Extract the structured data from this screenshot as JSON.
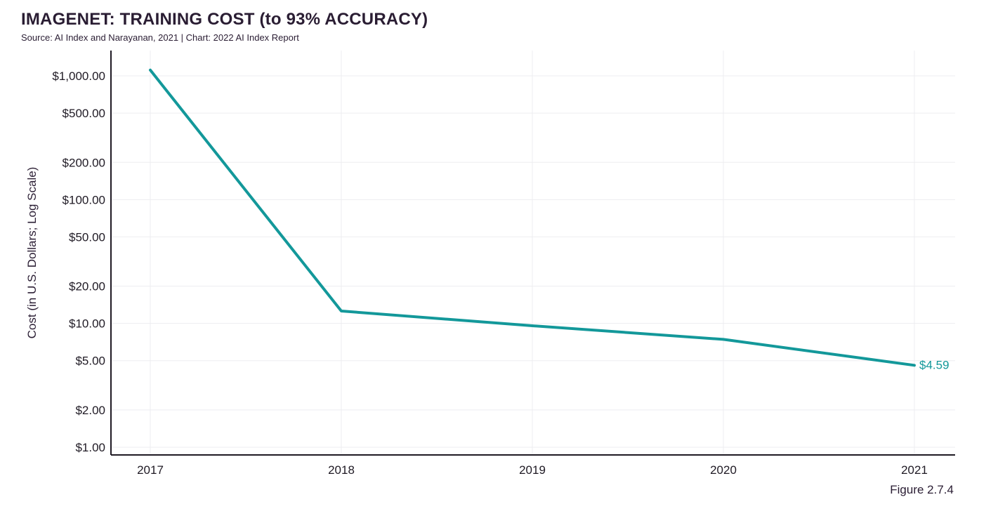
{
  "chart_data": {
    "type": "line",
    "title": "IMAGENET: TRAINING COST (to 93% ACCURACY)",
    "subtitle": "Source: AI Index and Narayanan, 2021 | Chart: 2022 AI Index Report",
    "ylabel": "Cost (in U.S. Dollars; Log Scale)",
    "xlabel": "",
    "y_scale": "log",
    "ylim": [
      0.8,
      1400
    ],
    "grid": true,
    "x": [
      "2017",
      "2018",
      "2019",
      "2020",
      "2021"
    ],
    "series": [
      {
        "values": [
          1112.64,
          12.6,
          9.58,
          7.43,
          4.59
        ],
        "color": "#13989a"
      }
    ],
    "y_ticks": [
      {
        "value": 1000,
        "label": "$1,000.00"
      },
      {
        "value": 500,
        "label": "$500.00"
      },
      {
        "value": 200,
        "label": "$200.00"
      },
      {
        "value": 100,
        "label": "$100.00"
      },
      {
        "value": 50,
        "label": "$50.00"
      },
      {
        "value": 20,
        "label": "$20.00"
      },
      {
        "value": 10,
        "label": "$10.00"
      },
      {
        "value": 5,
        "label": "$5.00"
      },
      {
        "value": 2,
        "label": "$2.00"
      },
      {
        "value": 1,
        "label": "$1.00"
      }
    ],
    "annotations": [
      {
        "x": "2021",
        "value": 4.59,
        "text": "$4.59"
      }
    ],
    "figure_label": "Figure 2.7.4"
  }
}
